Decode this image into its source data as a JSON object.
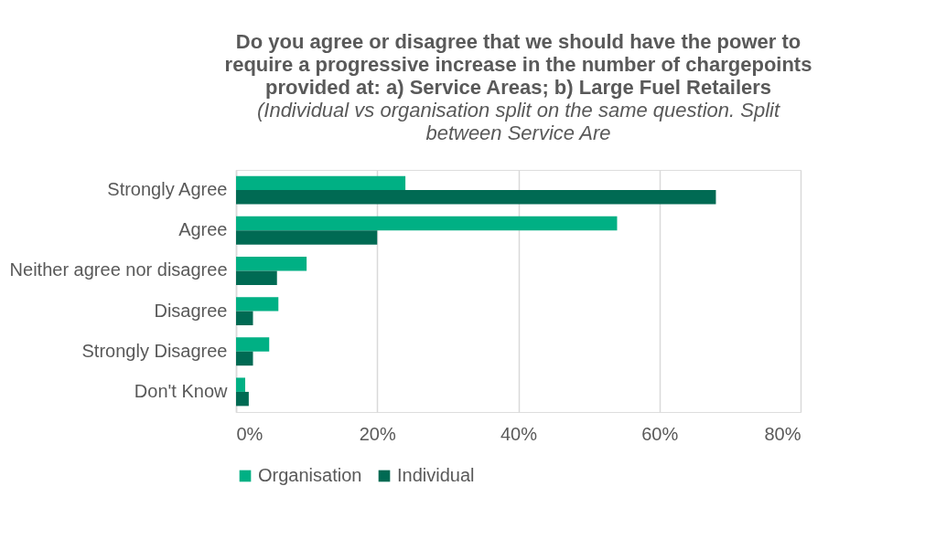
{
  "chart_data": {
    "type": "bar",
    "orientation": "horizontal",
    "title": "Do you agree or disagree that we should have the power to require a progressive increase in the number of chargepoints provided at: a) Service Areas; b) Large Fuel Retailers",
    "subtitle": "(Individual vs organisation split on the same question. Split between Service Are",
    "categories": [
      "Strongly Agree",
      "Agree",
      "Neither agree nor disagree",
      "Disagree",
      "Strongly Disagree",
      "Don't Know"
    ],
    "series": [
      {
        "name": "Organisation",
        "color": "#00b084",
        "values": [
          24,
          54,
          10,
          6,
          4.7,
          1.3
        ]
      },
      {
        "name": "Individual",
        "color": "#006a53",
        "values": [
          68,
          20,
          5.8,
          2.4,
          2.4,
          1.8
        ]
      }
    ],
    "xlim": [
      0,
      80
    ],
    "xticks": [
      {
        "value": 0,
        "label": "0%"
      },
      {
        "value": 20,
        "label": "20%"
      },
      {
        "value": 40,
        "label": "40%"
      },
      {
        "value": 60,
        "label": "60%"
      },
      {
        "value": 80,
        "label": "80%"
      }
    ],
    "grid": "x",
    "legend": "bottom"
  }
}
